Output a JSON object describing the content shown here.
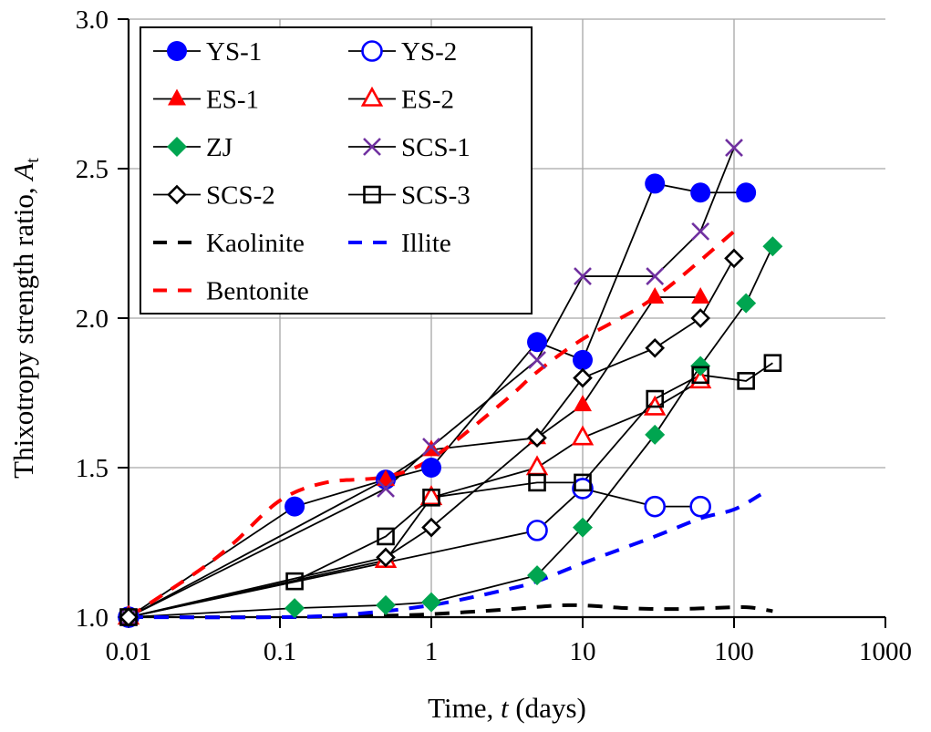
{
  "chart_data": {
    "type": "line",
    "title": "",
    "xlabel": "Time, t (days)",
    "xlabel_parts": [
      "Time, ",
      "t",
      " (days)"
    ],
    "ylabel": "Thixotropy strength ratio, A_t",
    "ylabel_parts": [
      "Thixotropy strength ratio, ",
      "A",
      "t"
    ],
    "xscale": "log",
    "xlim": [
      0.01,
      1000
    ],
    "ylim": [
      1.0,
      3.0
    ],
    "xticks": [
      0.01,
      0.1,
      1,
      10,
      100,
      1000
    ],
    "xtick_labels": [
      "0.01",
      "0.1",
      "1",
      "10",
      "100",
      "1000"
    ],
    "yticks": [
      1.0,
      1.5,
      2.0,
      2.5,
      3.0
    ],
    "ytick_labels": [
      "1.0",
      "1.5",
      "2.0",
      "2.5",
      "3.0"
    ],
    "grid": true,
    "legend_position": "top-left",
    "series": [
      {
        "name": "YS-1",
        "marker": "circle",
        "filled": true,
        "color": "#0000FF",
        "line": "solid-black",
        "x": [
          0.01,
          0.125,
          0.5,
          1,
          5,
          10,
          30,
          60,
          120
        ],
        "y": [
          1.0,
          1.37,
          1.46,
          1.5,
          1.92,
          1.86,
          2.45,
          2.42,
          2.42
        ]
      },
      {
        "name": "YS-2",
        "marker": "circle",
        "filled": false,
        "color": "#0000FF",
        "line": "solid-black",
        "x": [
          0.01,
          5,
          10,
          30,
          60
        ],
        "y": [
          1.0,
          1.29,
          1.43,
          1.37,
          1.37
        ]
      },
      {
        "name": "ES-1",
        "marker": "triangle",
        "filled": true,
        "color": "#FF0000",
        "line": "solid-black",
        "x": [
          0.01,
          0.5,
          1,
          5,
          10,
          30,
          60
        ],
        "y": [
          1.0,
          1.46,
          1.56,
          1.6,
          1.71,
          2.07,
          2.07
        ]
      },
      {
        "name": "ES-2",
        "marker": "triangle",
        "filled": false,
        "color": "#FF0000",
        "line": "solid-black",
        "x": [
          0.01,
          0.5,
          1,
          5,
          10,
          30,
          60
        ],
        "y": [
          1.0,
          1.19,
          1.4,
          1.5,
          1.6,
          1.7,
          1.79
        ]
      },
      {
        "name": "ZJ",
        "marker": "diamond",
        "filled": true,
        "color": "#00A550",
        "line": "solid-black",
        "x": [
          0.01,
          0.125,
          0.5,
          1,
          5,
          10,
          30,
          60,
          120,
          180
        ],
        "y": [
          1.0,
          1.03,
          1.04,
          1.05,
          1.14,
          1.3,
          1.61,
          1.84,
          2.05,
          2.24
        ]
      },
      {
        "name": "SCS-1",
        "marker": "x",
        "filled": false,
        "color": "#7030A0",
        "line": "solid-black",
        "x": [
          0.01,
          0.5,
          1,
          5,
          10,
          30,
          60,
          100
        ],
        "y": [
          1.0,
          1.43,
          1.57,
          1.86,
          2.14,
          2.14,
          2.29,
          2.57
        ]
      },
      {
        "name": "SCS-2",
        "marker": "diamond",
        "filled": false,
        "color": "#000000",
        "line": "solid-black",
        "x": [
          0.01,
          0.5,
          1,
          5,
          10,
          30,
          60,
          100
        ],
        "y": [
          1.0,
          1.2,
          1.3,
          1.6,
          1.8,
          1.9,
          2.0,
          2.2
        ]
      },
      {
        "name": "SCS-3",
        "marker": "square",
        "filled": false,
        "color": "#000000",
        "line": "solid-black",
        "x": [
          0.01,
          0.125,
          0.5,
          1,
          5,
          10,
          30,
          60,
          120,
          180
        ],
        "y": [
          1.0,
          1.12,
          1.27,
          1.4,
          1.45,
          1.45,
          1.73,
          1.81,
          1.79,
          1.85
        ]
      },
      {
        "name": "Kaolinite",
        "marker": "none",
        "color": "#000000",
        "line": "dashed",
        "x": [
          0.01,
          0.1,
          0.5,
          1,
          3,
          8,
          20,
          40,
          100,
          130,
          180
        ],
        "y": [
          1.0,
          1.0,
          1.005,
          1.01,
          1.025,
          1.04,
          1.03,
          1.027,
          1.033,
          1.032,
          1.02
        ]
      },
      {
        "name": "Illite",
        "marker": "none",
        "color": "#0000FF",
        "line": "dashed",
        "x": [
          0.01,
          0.1,
          0.3,
          1,
          3,
          5,
          10,
          30,
          60,
          100,
          150
        ],
        "y": [
          1.0,
          1.0,
          1.01,
          1.04,
          1.09,
          1.12,
          1.18,
          1.27,
          1.33,
          1.36,
          1.41
        ]
      },
      {
        "name": "Bentonite",
        "marker": "none",
        "color": "#FF0000",
        "line": "dashed",
        "x": [
          0.01,
          0.03,
          0.05,
          0.1,
          0.2,
          0.5,
          1,
          3,
          5,
          10,
          30,
          100
        ],
        "y": [
          1.0,
          1.16,
          1.25,
          1.39,
          1.45,
          1.47,
          1.53,
          1.72,
          1.82,
          1.93,
          2.07,
          2.29
        ]
      }
    ],
    "legend_layout": [
      [
        "YS-1",
        "YS-2"
      ],
      [
        "ES-1",
        "ES-2"
      ],
      [
        "ZJ",
        "SCS-1"
      ],
      [
        "SCS-2",
        "SCS-3"
      ],
      [
        "Kaolinite",
        "Illite"
      ],
      [
        "Bentonite"
      ]
    ]
  }
}
